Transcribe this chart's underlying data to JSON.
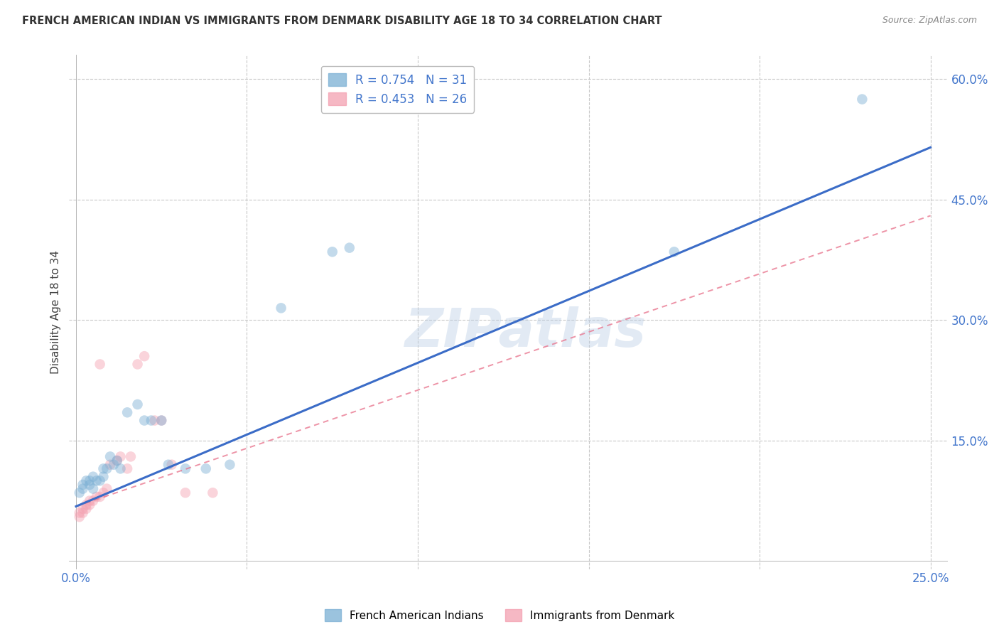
{
  "title": "FRENCH AMERICAN INDIAN VS IMMIGRANTS FROM DENMARK DISABILITY AGE 18 TO 34 CORRELATION CHART",
  "source": "Source: ZipAtlas.com",
  "ylabel": "Disability Age 18 to 34",
  "x_ticks": [
    0.0,
    0.05,
    0.1,
    0.15,
    0.2,
    0.25
  ],
  "x_tick_labels": [
    "0.0%",
    "",
    "",
    "",
    "",
    "25.0%"
  ],
  "y_ticks": [
    0.0,
    0.15,
    0.3,
    0.45,
    0.6
  ],
  "y_tick_labels": [
    "",
    "15.0%",
    "30.0%",
    "45.0%",
    "60.0%"
  ],
  "xlim": [
    -0.002,
    0.255
  ],
  "ylim": [
    -0.01,
    0.63
  ],
  "blue_scatter": [
    [
      0.001,
      0.085
    ],
    [
      0.002,
      0.095
    ],
    [
      0.002,
      0.09
    ],
    [
      0.003,
      0.1
    ],
    [
      0.004,
      0.095
    ],
    [
      0.004,
      0.1
    ],
    [
      0.005,
      0.09
    ],
    [
      0.005,
      0.105
    ],
    [
      0.006,
      0.1
    ],
    [
      0.007,
      0.1
    ],
    [
      0.008,
      0.105
    ],
    [
      0.008,
      0.115
    ],
    [
      0.009,
      0.115
    ],
    [
      0.01,
      0.13
    ],
    [
      0.011,
      0.12
    ],
    [
      0.012,
      0.125
    ],
    [
      0.013,
      0.115
    ],
    [
      0.015,
      0.185
    ],
    [
      0.018,
      0.195
    ],
    [
      0.02,
      0.175
    ],
    [
      0.022,
      0.175
    ],
    [
      0.025,
      0.175
    ],
    [
      0.027,
      0.12
    ],
    [
      0.032,
      0.115
    ],
    [
      0.038,
      0.115
    ],
    [
      0.045,
      0.12
    ],
    [
      0.06,
      0.315
    ],
    [
      0.075,
      0.385
    ],
    [
      0.08,
      0.39
    ],
    [
      0.175,
      0.385
    ],
    [
      0.23,
      0.575
    ]
  ],
  "pink_scatter": [
    [
      0.001,
      0.055
    ],
    [
      0.001,
      0.06
    ],
    [
      0.002,
      0.065
    ],
    [
      0.002,
      0.06
    ],
    [
      0.003,
      0.065
    ],
    [
      0.003,
      0.07
    ],
    [
      0.004,
      0.075
    ],
    [
      0.004,
      0.07
    ],
    [
      0.005,
      0.075
    ],
    [
      0.006,
      0.08
    ],
    [
      0.007,
      0.08
    ],
    [
      0.008,
      0.085
    ],
    [
      0.009,
      0.09
    ],
    [
      0.01,
      0.12
    ],
    [
      0.012,
      0.125
    ],
    [
      0.013,
      0.13
    ],
    [
      0.015,
      0.115
    ],
    [
      0.016,
      0.13
    ],
    [
      0.018,
      0.245
    ],
    [
      0.02,
      0.255
    ],
    [
      0.023,
      0.175
    ],
    [
      0.025,
      0.175
    ],
    [
      0.028,
      0.12
    ],
    [
      0.032,
      0.085
    ],
    [
      0.04,
      0.085
    ],
    [
      0.007,
      0.245
    ]
  ],
  "blue_line_x": [
    0.0,
    0.25
  ],
  "blue_line_y": [
    0.068,
    0.515
  ],
  "pink_line_x": [
    0.0,
    0.25
  ],
  "pink_line_y": [
    0.068,
    0.43
  ],
  "scatter_alpha": 0.45,
  "scatter_size": 110,
  "blue_color": "#7AAFD4",
  "pink_color": "#F4A0B0",
  "blue_line_color": "#3B6CC7",
  "pink_line_color": "#E8708A",
  "grid_color": "#C8C8C8",
  "title_color": "#333333",
  "axis_label_color": "#4477CC",
  "watermark_color": "#B8CCE4",
  "watermark_alpha": 0.4,
  "legend_blue_label": "R = 0.754   N = 31",
  "legend_pink_label": "R = 0.453   N = 26",
  "bottom_legend_blue": "French American Indians",
  "bottom_legend_pink": "Immigrants from Denmark"
}
